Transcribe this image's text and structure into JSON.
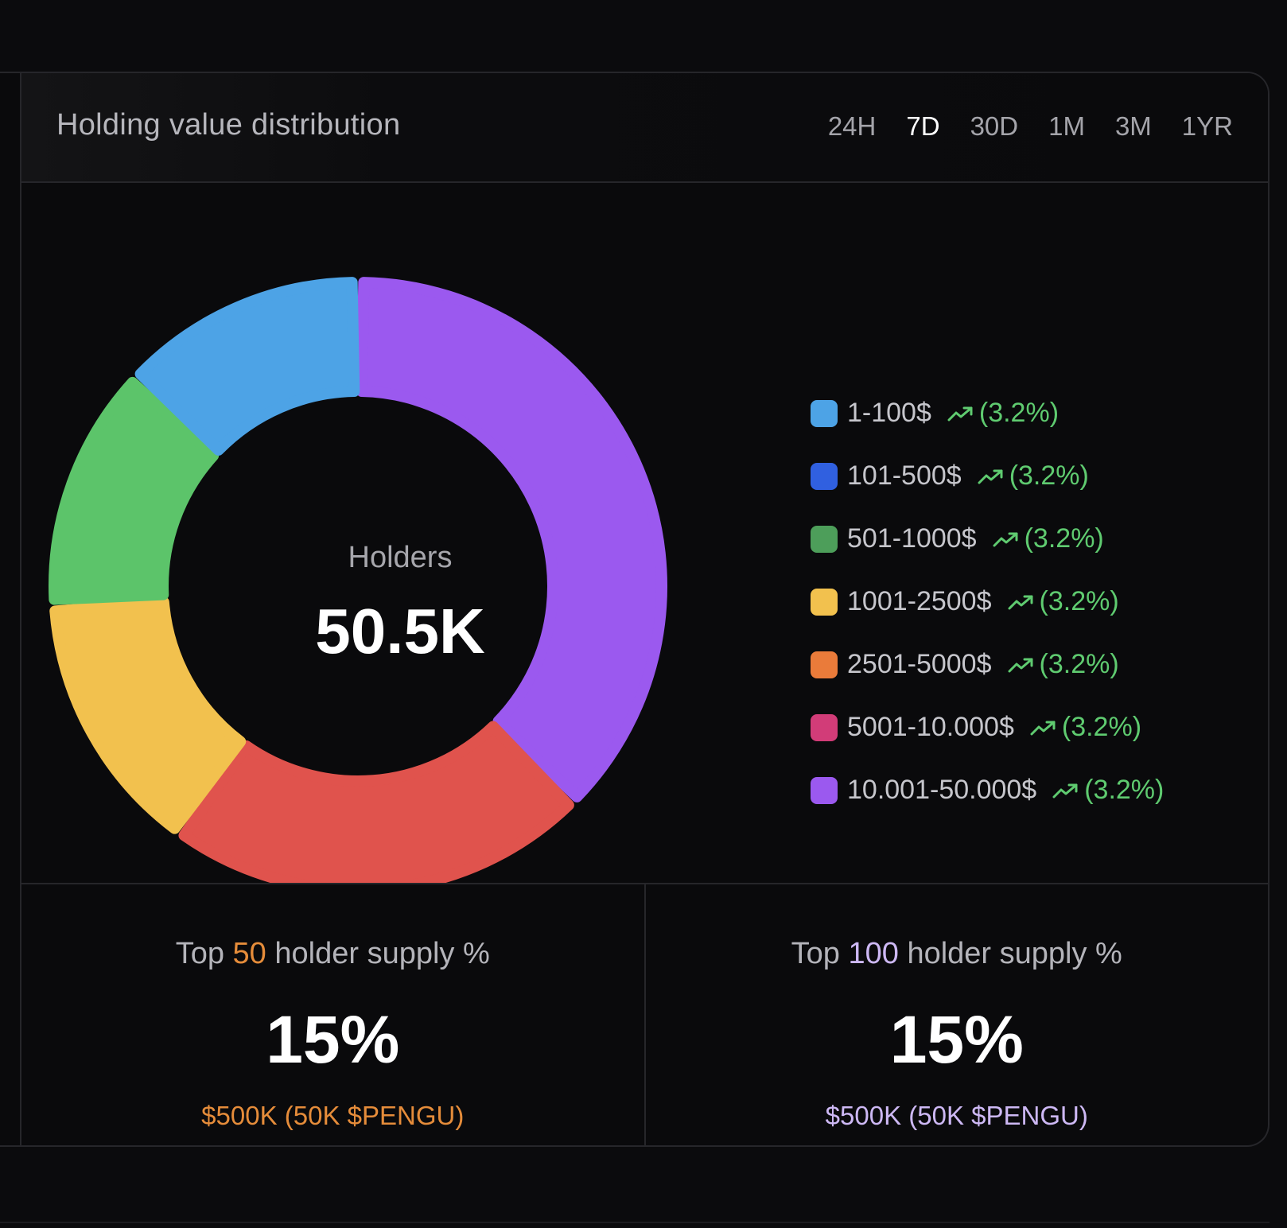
{
  "header": {
    "title": "Holding value distribution",
    "tabs": [
      {
        "label": "24H",
        "active": false
      },
      {
        "label": "7D",
        "active": true
      },
      {
        "label": "30D",
        "active": false
      },
      {
        "label": "1M",
        "active": false
      },
      {
        "label": "3M",
        "active": false
      },
      {
        "label": "1YR",
        "active": false
      }
    ]
  },
  "donut": {
    "center_label": "Holders",
    "center_value": "50.5K"
  },
  "chart_data": {
    "type": "pie",
    "title": "Holding value distribution",
    "segments": [
      {
        "label": "10.001-50.000$",
        "value": 37.5,
        "color": "#9b59ef"
      },
      {
        "label": "Red segment (unlabeled)",
        "value": 22.5,
        "color": "#e0534d"
      },
      {
        "label": "1001-2500$",
        "value": 14.0,
        "color": "#f2c14e"
      },
      {
        "label": "501-1000$",
        "value": 13.0,
        "color": "#5cc46a"
      },
      {
        "label": "1-100$",
        "value": 13.0,
        "color": "#4da3e6"
      }
    ]
  },
  "legend": [
    {
      "label": "1-100$",
      "color": "#4da3e6",
      "change": "(3.2%)"
    },
    {
      "label": "101-500$",
      "color": "#3060e0",
      "change": "(3.2%)"
    },
    {
      "label": "501-1000$",
      "color": "#4d9e5a",
      "change": "(3.2%)"
    },
    {
      "label": "1001-2500$",
      "color": "#f2c14e",
      "change": "(3.2%)"
    },
    {
      "label": "2501-5000$",
      "color": "#ea7b3a",
      "change": "(3.2%)"
    },
    {
      "label": "5001-10.000$",
      "color": "#d23c78",
      "change": "(3.2%)"
    },
    {
      "label": "10.001-50.000$",
      "color": "#9b59ef",
      "change": "(3.2%)"
    }
  ],
  "stats": [
    {
      "title_prefix": "Top ",
      "title_number": "50",
      "title_suffix": " holder supply %",
      "value": "15%",
      "sub": "$500K (50K $PENGU)",
      "accent": "#e58c3a"
    },
    {
      "title_prefix": "Top ",
      "title_number": "100",
      "title_suffix": " holder supply %",
      "value": "15%",
      "sub": "$500K (50K $PENGU)",
      "accent": "#cdb8f4"
    }
  ]
}
